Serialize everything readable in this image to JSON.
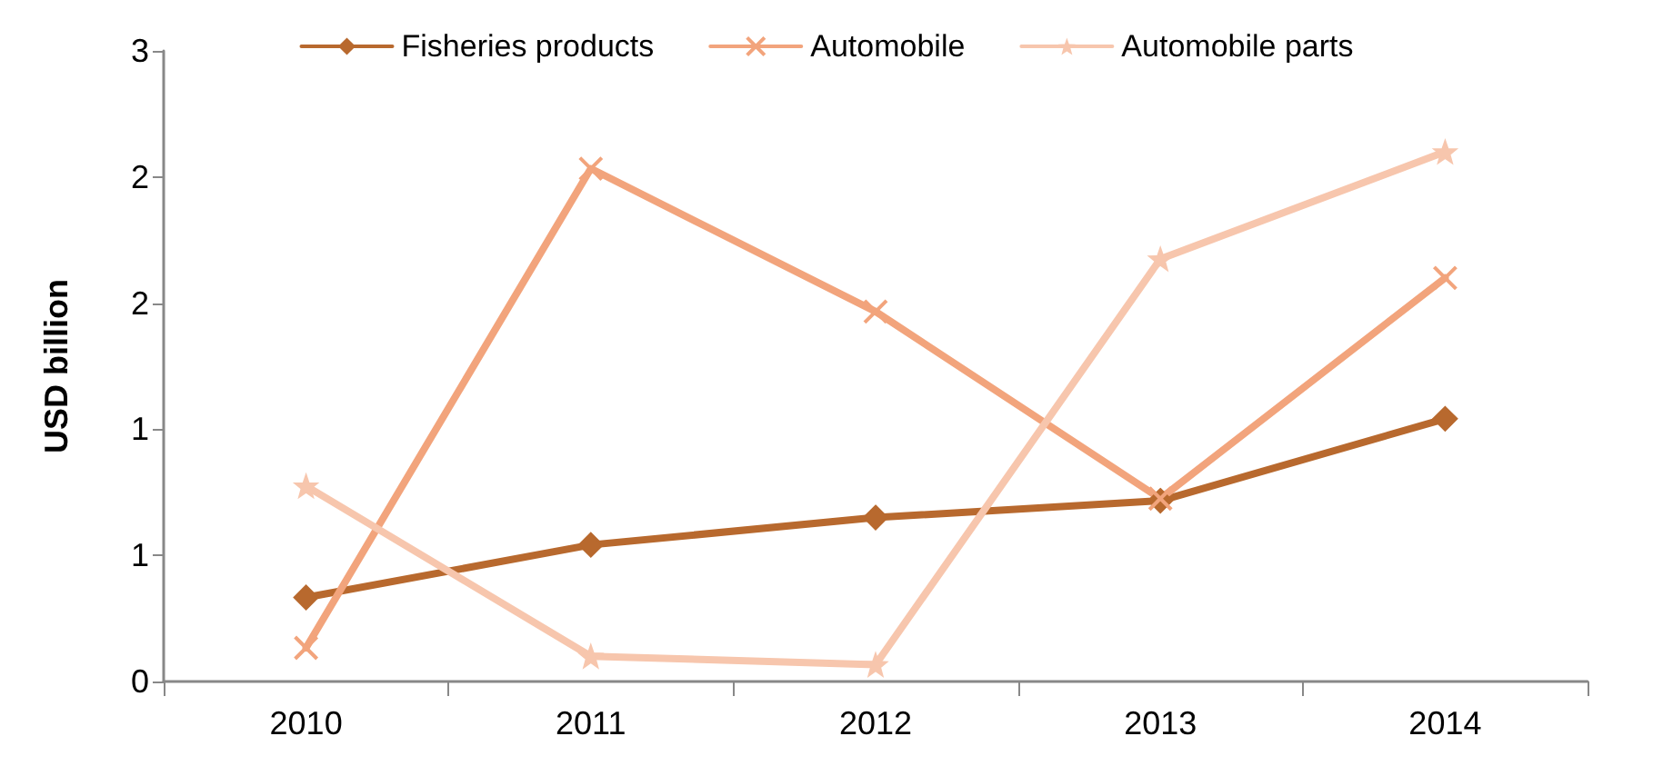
{
  "chart_data": {
    "type": "line",
    "ylabel": "USD billion",
    "categories": [
      "2010",
      "2011",
      "2012",
      "2013",
      "2014"
    ],
    "series": [
      {
        "name": "Fisheries products",
        "color": "#b8692e",
        "marker": "diamond",
        "values": [
          0.4,
          0.65,
          0.78,
          0.86,
          1.25
        ]
      },
      {
        "name": "Automobile",
        "color": "#f2a47c",
        "marker": "cross",
        "values": [
          0.16,
          2.44,
          1.76,
          0.87,
          1.92
        ]
      },
      {
        "name": "Automobile parts",
        "color": "#f7c6ad",
        "marker": "star",
        "values": [
          0.93,
          0.12,
          0.08,
          2.01,
          2.52
        ]
      }
    ],
    "ylim": [
      0,
      3
    ],
    "yticks": [
      0,
      {
        "value": 0.6,
        "label": "1"
      },
      {
        "value": 1.2,
        "label": "1"
      },
      {
        "value": 1.8,
        "label": "2"
      },
      {
        "value": 2.4,
        "label": "2"
      },
      3
    ],
    "grid": false,
    "legend": "top"
  }
}
